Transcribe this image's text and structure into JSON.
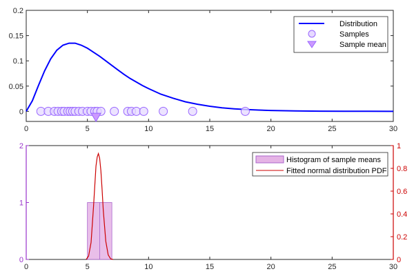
{
  "colors": {
    "distribution": "#0000ff",
    "samples_edge": "#9966ff",
    "samples_fill": "#e6d9ff",
    "mean_fill": "#cc99ff",
    "hist_fill": "#e5b3e5",
    "hist_edge": "#aa66cc",
    "left_axis": "#9933cc",
    "right_axis": "#cc0000",
    "pdf_line": "#cc0000"
  },
  "chart_data": [
    {
      "type": "line",
      "xlim": [
        0,
        30
      ],
      "ylim": [
        -0.02,
        0.2
      ],
      "xticks": [
        "0",
        "5",
        "10",
        "15",
        "20",
        "25",
        "30"
      ],
      "yticks": [
        "0",
        "0.05",
        "0.1",
        "0.15",
        "0.2"
      ],
      "legend": {
        "placement": "top-right",
        "entries": [
          "Distribution",
          "Samples",
          "Sample mean"
        ]
      },
      "series": [
        {
          "name": "Distribution",
          "x": [
            0,
            0.5,
            1,
            1.5,
            2,
            2.5,
            3,
            3.5,
            4,
            4.5,
            5,
            5.5,
            6,
            6.5,
            7,
            7.5,
            8,
            8.5,
            9,
            9.5,
            10,
            11,
            12,
            13,
            14,
            15,
            16,
            17,
            18,
            19,
            20,
            22,
            24,
            26,
            28,
            30
          ],
          "y": [
            0,
            0.021,
            0.051,
            0.08,
            0.104,
            0.121,
            0.131,
            0.135,
            0.135,
            0.131,
            0.125,
            0.117,
            0.109,
            0.1,
            0.091,
            0.082,
            0.073,
            0.065,
            0.058,
            0.051,
            0.045,
            0.034,
            0.026,
            0.019,
            0.014,
            0.01,
            0.007,
            0.005,
            0.0035,
            0.0025,
            0.0017,
            0.0008,
            0.0004,
            0.0002,
            0.0001,
            0
          ]
        },
        {
          "name": "Samples",
          "x": [
            1.2,
            1.8,
            2.3,
            2.6,
            2.9,
            3.1,
            3.4,
            3.6,
            3.8,
            4.0,
            4.3,
            4.6,
            5.0,
            5.3,
            5.6,
            5.8,
            6.1,
            7.2,
            8.3,
            8.6,
            9.0,
            9.6,
            11.2,
            13.6,
            17.9
          ],
          "y": [
            0,
            0,
            0,
            0,
            0,
            0,
            0,
            0,
            0,
            0,
            0,
            0,
            0,
            0,
            0,
            0,
            0,
            0,
            0,
            0,
            0,
            0,
            0,
            0,
            0
          ]
        },
        {
          "name": "Sample mean",
          "x": [
            5.7
          ],
          "y": [
            -0.012
          ]
        }
      ]
    },
    {
      "type": "bar",
      "xlim": [
        0,
        30
      ],
      "ylim_left": [
        0,
        2
      ],
      "ylim_right": [
        0,
        1
      ],
      "xticks": [
        "0",
        "5",
        "10",
        "15",
        "20",
        "25",
        "30"
      ],
      "yticks_left": [
        "0",
        "1",
        "2"
      ],
      "yticks_right": [
        "0",
        "0.2",
        "0.4",
        "0.6",
        "0.8",
        "1"
      ],
      "legend": {
        "placement": "top-right",
        "entries": [
          "Histogram of sample means",
          "Fitted normal distribution PDF"
        ]
      },
      "histogram": {
        "name": "Histogram of sample means",
        "bins": [
          [
            5,
            6
          ],
          [
            6,
            7
          ]
        ],
        "values": [
          1,
          1
        ]
      },
      "pdf": {
        "name": "Fitted normal distribution PDF",
        "x": [
          4.9,
          5.1,
          5.3,
          5.5,
          5.7,
          5.8,
          5.9,
          6.0,
          6.1,
          6.2,
          6.3,
          6.5,
          6.7,
          6.9,
          7.1
        ],
        "y": [
          0.0,
          0.03,
          0.15,
          0.46,
          0.82,
          0.9,
          0.93,
          0.89,
          0.78,
          0.62,
          0.43,
          0.16,
          0.04,
          0.005,
          0.0
        ]
      }
    }
  ]
}
